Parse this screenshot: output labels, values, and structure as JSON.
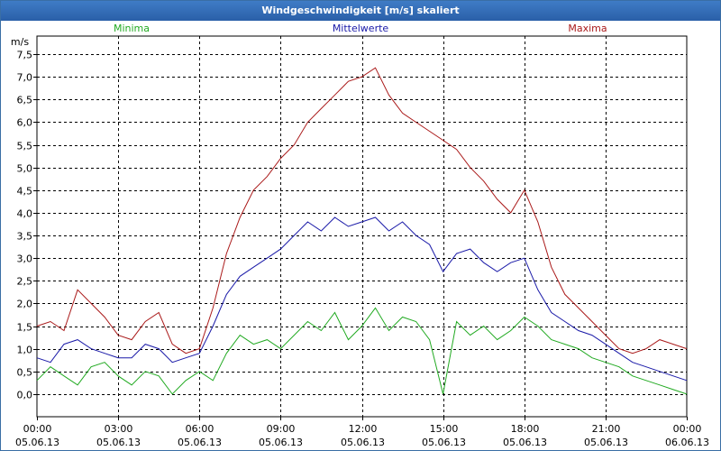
{
  "window": {
    "title": "Windgeschwindigkeit [m/s] skaliert"
  },
  "chart_data": {
    "type": "line",
    "title": "Windgeschwindigkeit [m/s] skaliert",
    "ylabel": "m/s",
    "ylim": [
      -0.5,
      7.9
    ],
    "yticks": [
      0.0,
      0.5,
      1.0,
      1.5,
      2.0,
      2.5,
      3.0,
      3.5,
      4.0,
      4.5,
      5.0,
      5.5,
      6.0,
      6.5,
      7.0,
      7.5
    ],
    "ytick_labels": [
      "0,0",
      "0,5",
      "1,0",
      "1,5",
      "2,0",
      "2,5",
      "3,0",
      "3,5",
      "4,0",
      "4,5",
      "5,0",
      "5,5",
      "6,0",
      "6,5",
      "7,0",
      "7,5"
    ],
    "xlim": [
      0,
      24
    ],
    "xticks": [
      0,
      3,
      6,
      9,
      12,
      15,
      18,
      21,
      24
    ],
    "xtick_times": [
      "00:00",
      "03:00",
      "06:00",
      "09:00",
      "12:00",
      "15:00",
      "18:00",
      "21:00",
      "00:00"
    ],
    "xtick_dates": [
      "05.06.13",
      "05.06.13",
      "05.06.13",
      "05.06.13",
      "05.06.13",
      "05.06.13",
      "05.06.13",
      "05.06.13",
      "06.06.13"
    ],
    "grid": true,
    "series": [
      {
        "name": "Minima",
        "color": "#22aa22",
        "x": [
          0,
          0.5,
          1,
          1.5,
          2,
          2.5,
          3,
          3.5,
          4,
          4.5,
          5,
          5.5,
          6,
          6.5,
          7,
          7.5,
          8,
          8.5,
          9,
          9.5,
          10,
          10.5,
          11,
          11.5,
          12,
          12.5,
          13,
          13.5,
          14,
          14.5,
          15,
          15.5,
          16,
          16.5,
          17,
          17.5,
          18,
          18.5,
          19,
          19.5,
          20,
          20.5,
          21,
          21.5,
          22,
          22.5,
          23,
          23.5,
          24
        ],
        "y": [
          0.3,
          0.6,
          0.4,
          0.2,
          0.6,
          0.7,
          0.4,
          0.2,
          0.5,
          0.4,
          0.0,
          0.3,
          0.5,
          0.3,
          0.9,
          1.3,
          1.1,
          1.2,
          1.0,
          1.3,
          1.6,
          1.4,
          1.8,
          1.2,
          1.5,
          1.9,
          1.4,
          1.7,
          1.6,
          1.2,
          0.0,
          1.6,
          1.3,
          1.5,
          1.2,
          1.4,
          1.7,
          1.5,
          1.2,
          1.1,
          1.0,
          0.8,
          0.7,
          0.6,
          0.4,
          0.3,
          0.2,
          0.1,
          0.0
        ]
      },
      {
        "name": "Mittelwerte",
        "color": "#1a1aa8",
        "x": [
          0,
          0.5,
          1,
          1.5,
          2,
          2.5,
          3,
          3.5,
          4,
          4.5,
          5,
          5.5,
          6,
          6.5,
          7,
          7.5,
          8,
          8.5,
          9,
          9.5,
          10,
          10.5,
          11,
          11.5,
          12,
          12.5,
          13,
          13.5,
          14,
          14.5,
          15,
          15.5,
          16,
          16.5,
          17,
          17.5,
          18,
          18.5,
          19,
          19.5,
          20,
          20.5,
          21,
          21.5,
          22,
          22.5,
          23,
          23.5,
          24
        ],
        "y": [
          0.8,
          0.7,
          1.1,
          1.2,
          1.0,
          0.9,
          0.8,
          0.8,
          1.1,
          1.0,
          0.7,
          0.8,
          0.9,
          1.5,
          2.2,
          2.6,
          2.8,
          3.0,
          3.2,
          3.5,
          3.8,
          3.6,
          3.9,
          3.7,
          3.8,
          3.9,
          3.6,
          3.8,
          3.5,
          3.3,
          2.7,
          3.1,
          3.2,
          2.9,
          2.7,
          2.9,
          3.0,
          2.3,
          1.8,
          1.6,
          1.4,
          1.3,
          1.1,
          0.9,
          0.7,
          0.6,
          0.5,
          0.4,
          0.3
        ]
      },
      {
        "name": "Maxima",
        "color": "#aa1a1a",
        "x": [
          0,
          0.5,
          1,
          1.5,
          2,
          2.5,
          3,
          3.5,
          4,
          4.5,
          5,
          5.5,
          6,
          6.5,
          7,
          7.5,
          8,
          8.5,
          9,
          9.5,
          10,
          10.5,
          11,
          11.5,
          12,
          12.5,
          13,
          13.5,
          14,
          14.5,
          15,
          15.5,
          16,
          16.5,
          17,
          17.5,
          18,
          18.5,
          19,
          19.5,
          20,
          20.5,
          21,
          21.5,
          22,
          22.5,
          23,
          23.5,
          24
        ],
        "y": [
          1.5,
          1.6,
          1.4,
          2.3,
          2.0,
          1.7,
          1.3,
          1.2,
          1.6,
          1.8,
          1.1,
          0.9,
          1.0,
          1.9,
          3.1,
          3.9,
          4.5,
          4.8,
          5.2,
          5.5,
          6.0,
          6.3,
          6.6,
          6.9,
          7.0,
          7.2,
          6.6,
          6.2,
          6.0,
          5.8,
          5.6,
          5.4,
          5.0,
          4.7,
          4.3,
          4.0,
          4.5,
          3.8,
          2.8,
          2.2,
          1.9,
          1.6,
          1.3,
          1.0,
          0.9,
          1.0,
          1.2,
          1.1,
          1.0
        ]
      }
    ],
    "legend": [
      "Minima",
      "Mittelwerte",
      "Maxima"
    ]
  }
}
